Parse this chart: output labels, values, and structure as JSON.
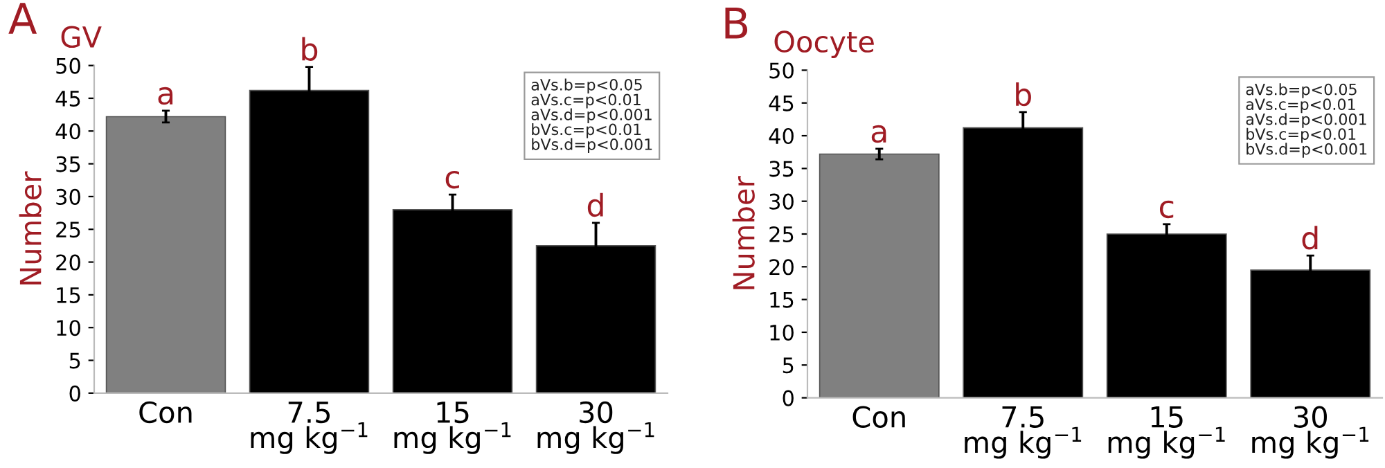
{
  "chart_data": [
    {
      "type": "bar",
      "title": "GV",
      "ylabel": "Number",
      "categories": [
        "Con",
        "7.5\nmg kg$^{−1}$",
        "15\nmg kg$^{−1}$",
        "30\nmg kg$^{−1}$"
      ],
      "values": [
        42.2,
        46.2,
        28,
        22.5
      ],
      "errors": [
        0.9,
        3.6,
        2.3,
        3.5
      ],
      "colors": [
        "#808080",
        "#000000",
        "#000000",
        "#000000"
      ],
      "value_labels": [
        "a",
        "b",
        "c",
        "d"
      ],
      "ylim": [
        0,
        50
      ],
      "yticks": [
        0,
        5,
        10,
        15,
        20,
        25,
        30,
        35,
        40,
        45,
        50
      ],
      "grid": false,
      "annotations": [
        "A",
        "aVs.b=p<0.05\naVs.c=p<0.01\naVs.d=p<0.001\nbVs.c=p<0.01\nbVs.d=p<0.001"
      ]
    },
    {
      "type": "bar",
      "title": "Oocyte",
      "ylabel": "Number",
      "categories": [
        "Con",
        "7.5\nmg kg$^{−1}$",
        "15\nmg kg$^{−1}$",
        "30\nmg kg$^{−1}$"
      ],
      "values": [
        37.2,
        41.2,
        25,
        19.5
      ],
      "errors": [
        0.8,
        2.4,
        1.5,
        2.2
      ],
      "colors": [
        "#808080",
        "#000000",
        "#000000",
        "#000000"
      ],
      "value_labels": [
        "a",
        "b",
        "c",
        "d"
      ],
      "ylim": [
        0,
        50
      ],
      "yticks": [
        0,
        5,
        10,
        15,
        20,
        25,
        30,
        35,
        40,
        45,
        50
      ],
      "grid": false,
      "annotations": [
        "B",
        "aVs.b=p<0.05\naVs.c=p<0.01\naVs.d=p<0.001\nbVs.c=p<0.01\nbVs.d=p<0.001"
      ]
    }
  ]
}
